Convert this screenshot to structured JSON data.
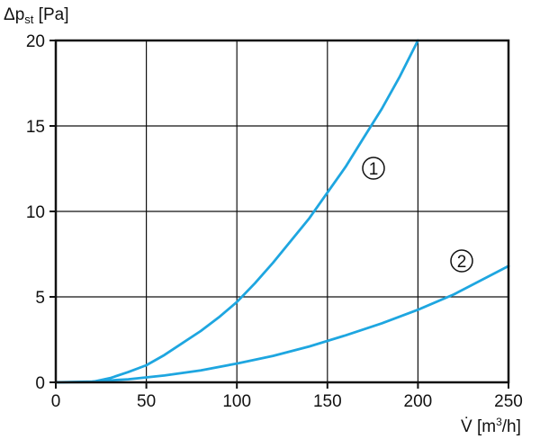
{
  "chart_data": {
    "type": "line",
    "ylabel": {
      "symbol": "Δp",
      "sub": "st",
      "unit": " [Pa]"
    },
    "xlabel": {
      "symbol": "V̇",
      "unit_pre": " [m",
      "unit_sup": "3",
      "unit_post": "/h]"
    },
    "xlim": [
      0,
      250
    ],
    "ylim": [
      0,
      20
    ],
    "x_ticks": [
      0,
      50,
      100,
      150,
      200,
      250
    ],
    "y_ticks": [
      0,
      5,
      10,
      15,
      20
    ],
    "grid": true,
    "line_color": "#1ea6e0",
    "series": [
      {
        "marker": "1",
        "x": [
          20,
          30,
          40,
          50,
          60,
          70,
          80,
          90,
          100,
          110,
          120,
          130,
          140,
          150,
          160,
          170,
          180,
          190,
          200
        ],
        "y": [
          0.02,
          0.25,
          0.6,
          1.0,
          1.6,
          2.3,
          3.0,
          3.8,
          4.7,
          5.8,
          7.0,
          8.3,
          9.6,
          11.1,
          12.6,
          14.3,
          16.0,
          17.9,
          20.0
        ]
      },
      {
        "marker": "2",
        "x": [
          20,
          40,
          60,
          80,
          100,
          120,
          140,
          160,
          180,
          200,
          220,
          250
        ],
        "y": [
          0.05,
          0.18,
          0.4,
          0.7,
          1.1,
          1.55,
          2.1,
          2.75,
          3.45,
          4.25,
          5.15,
          6.8
        ]
      }
    ]
  }
}
